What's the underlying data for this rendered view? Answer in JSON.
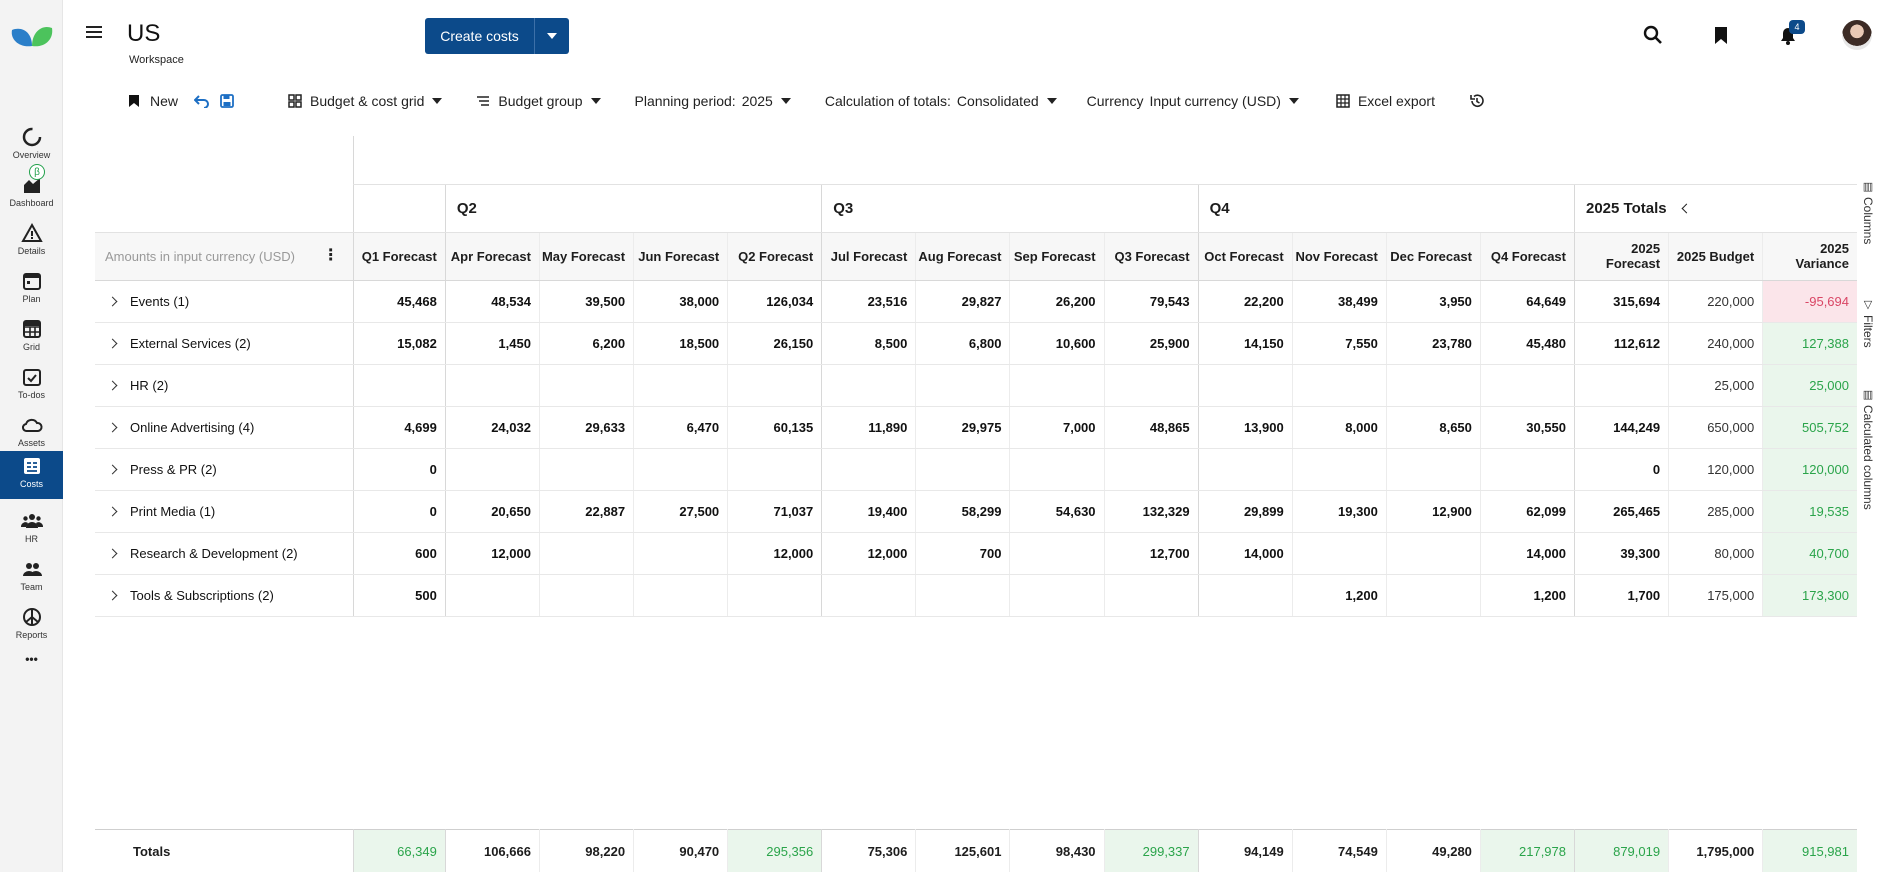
{
  "nav": {
    "items": [
      {
        "label": "Overview"
      },
      {
        "label": "Dashboard"
      },
      {
        "label": "Details"
      },
      {
        "label": "Plan"
      },
      {
        "label": "Grid"
      },
      {
        "label": "To-dos"
      },
      {
        "label": "Assets"
      },
      {
        "label": "Costs"
      },
      {
        "label": "HR"
      },
      {
        "label": "Team"
      },
      {
        "label": "Reports"
      }
    ],
    "beta_badge": "β",
    "more": "•••"
  },
  "header": {
    "title": "US",
    "subtitle": "Workspace",
    "create_button": "Create costs",
    "notification_count": "4"
  },
  "toolbar": {
    "new": "New",
    "view": "Budget & cost grid",
    "group": "Budget group",
    "planning_label": "Planning period:",
    "planning_value": "2025",
    "calc_label": "Calculation of totals:",
    "calc_value": "Consolidated",
    "currency_label": "Currency",
    "currency_value": "Input currency (USD)",
    "export": "Excel export"
  },
  "rail": {
    "columns": "Columns",
    "filters": "Filters",
    "calculated": "Calculated columns"
  },
  "grid": {
    "amount_label": "Amounts in input currency (USD)",
    "quarters": {
      "q2": "Q2",
      "q3": "Q3",
      "q4": "Q4",
      "totals": "2025 Totals"
    },
    "columns": [
      "Q1 Forecast",
      "Apr Forecast",
      "May Forecast",
      "Jun Forecast",
      "Q2 Forecast",
      "Jul Forecast",
      "Aug Forecast",
      "Sep Forecast",
      "Q3 Forecast",
      "Oct Forecast",
      "Nov Forecast",
      "Dec Forecast",
      "Q4 Forecast",
      "2025 Forecast",
      "2025 Budget",
      "2025 Variance"
    ],
    "rows": [
      {
        "label": "Events (1)",
        "values": [
          "45,468",
          "48,534",
          "39,500",
          "38,000",
          "126,034",
          "23,516",
          "29,827",
          "26,200",
          "79,543",
          "22,200",
          "38,499",
          "3,950",
          "64,649",
          "315,694",
          "220,000",
          "-95,694"
        ],
        "negative": true
      },
      {
        "label": "External Services (2)",
        "values": [
          "15,082",
          "1,450",
          "6,200",
          "18,500",
          "26,150",
          "8,500",
          "6,800",
          "10,600",
          "25,900",
          "14,150",
          "7,550",
          "23,780",
          "45,480",
          "112,612",
          "240,000",
          "127,388"
        ],
        "negative": false
      },
      {
        "label": "HR (2)",
        "values": [
          "",
          "",
          "",
          "",
          "",
          "",
          "",
          "",
          "",
          "",
          "",
          "",
          "",
          "",
          "25,000",
          "25,000"
        ],
        "negative": false
      },
      {
        "label": "Online Advertising (4)",
        "values": [
          "4,699",
          "24,032",
          "29,633",
          "6,470",
          "60,135",
          "11,890",
          "29,975",
          "7,000",
          "48,865",
          "13,900",
          "8,000",
          "8,650",
          "30,550",
          "144,249",
          "650,000",
          "505,752"
        ],
        "negative": false
      },
      {
        "label": "Press & PR (2)",
        "values": [
          "0",
          "",
          "",
          "",
          "",
          "",
          "",
          "",
          "",
          "",
          "",
          "",
          "",
          "0",
          "120,000",
          "120,000"
        ],
        "negative": false
      },
      {
        "label": "Print Media (1)",
        "values": [
          "0",
          "20,650",
          "22,887",
          "27,500",
          "71,037",
          "19,400",
          "58,299",
          "54,630",
          "132,329",
          "29,899",
          "19,300",
          "12,900",
          "62,099",
          "265,465",
          "285,000",
          "19,535"
        ],
        "negative": false
      },
      {
        "label": "Research & Development (2)",
        "values": [
          "600",
          "12,000",
          "",
          "",
          "12,000",
          "12,000",
          "700",
          "",
          "12,700",
          "14,000",
          "",
          "",
          "14,000",
          "39,300",
          "80,000",
          "40,700"
        ],
        "negative": false
      },
      {
        "label": "Tools & Subscriptions (2)",
        "values": [
          "500",
          "",
          "",
          "",
          "",
          "",
          "",
          "",
          "",
          "",
          "1,200",
          "",
          "1,200",
          "1,700",
          "175,000",
          "173,300"
        ],
        "negative": false
      }
    ],
    "totals": {
      "label": "Totals",
      "values": [
        "66,349",
        "106,666",
        "98,220",
        "90,470",
        "295,356",
        "75,306",
        "125,601",
        "98,430",
        "299,337",
        "94,149",
        "74,549",
        "49,280",
        "217,978",
        "879,019",
        "1,795,000",
        "915,981"
      ]
    }
  }
}
